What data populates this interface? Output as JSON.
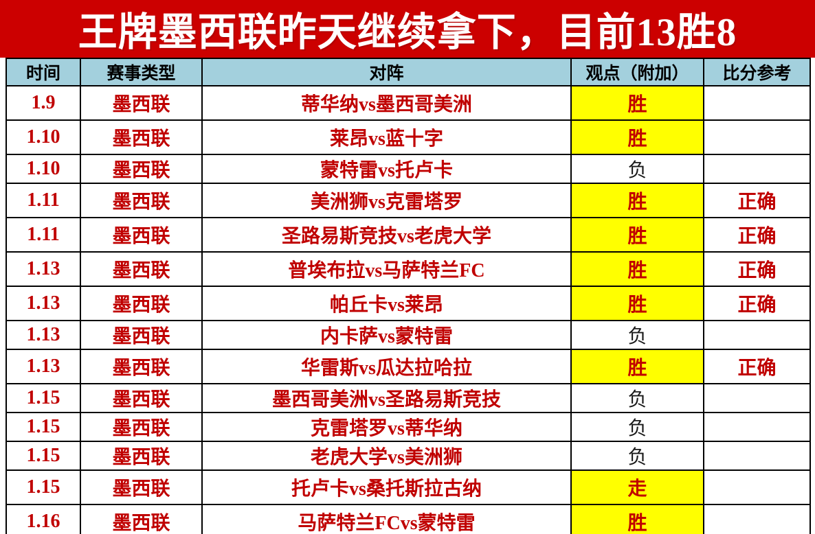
{
  "banner": {
    "title": "王牌墨西联昨天继续拿下，目前13胜8"
  },
  "colors": {
    "banner_red": "#cc0000",
    "header_blue": "#a3d0dd",
    "highlight_yellow": "#ffff00",
    "text_red": "#c00000",
    "lose_text_black": "#1a1a1a"
  },
  "table": {
    "headers": [
      "时间",
      "赛事类型",
      "对阵",
      "观点（附加）",
      "比分参考"
    ],
    "rows": [
      {
        "time": "1.9",
        "league": "墨西联",
        "matchup": "蒂华纳vs墨西哥美洲",
        "prediction": "胜",
        "highlighted": true,
        "result": ""
      },
      {
        "time": "1.10",
        "league": "墨西联",
        "matchup": "莱昂vs蓝十字",
        "prediction": "胜",
        "highlighted": true,
        "result": ""
      },
      {
        "time": "1.10",
        "league": "墨西联",
        "matchup": "蒙特雷vs托卢卡",
        "prediction": "负",
        "highlighted": false,
        "result": ""
      },
      {
        "time": "1.11",
        "league": "墨西联",
        "matchup": "美洲狮vs克雷塔罗",
        "prediction": "胜",
        "highlighted": true,
        "result": "正确"
      },
      {
        "time": "1.11",
        "league": "墨西联",
        "matchup": "圣路易斯竞技vs老虎大学",
        "prediction": "胜",
        "highlighted": true,
        "result": "正确"
      },
      {
        "time": "1.13",
        "league": "墨西联",
        "matchup": "普埃布拉vs马萨特兰FC",
        "prediction": "胜",
        "highlighted": true,
        "result": "正确"
      },
      {
        "time": "1.13",
        "league": "墨西联",
        "matchup": "帕丘卡vs莱昂",
        "prediction": "胜",
        "highlighted": true,
        "result": "正确"
      },
      {
        "time": "1.13",
        "league": "墨西联",
        "matchup": "内卡萨vs蒙特雷",
        "prediction": "负",
        "highlighted": false,
        "result": ""
      },
      {
        "time": "1.13",
        "league": "墨西联",
        "matchup": "华雷斯vs瓜达拉哈拉",
        "prediction": "胜",
        "highlighted": true,
        "result": "正确"
      },
      {
        "time": "1.15",
        "league": "墨西联",
        "matchup": "墨西哥美洲vs圣路易斯竞技",
        "prediction": "负",
        "highlighted": false,
        "result": ""
      },
      {
        "time": "1.15",
        "league": "墨西联",
        "matchup": "克雷塔罗vs蒂华纳",
        "prediction": "负",
        "highlighted": false,
        "result": ""
      },
      {
        "time": "1.15",
        "league": "墨西联",
        "matchup": "老虎大学vs美洲狮",
        "prediction": "负",
        "highlighted": false,
        "result": ""
      },
      {
        "time": "1.15",
        "league": "墨西联",
        "matchup": "托卢卡vs桑托斯拉古纳",
        "prediction": "走",
        "highlighted": true,
        "result": ""
      },
      {
        "time": "1.16",
        "league": "墨西联",
        "matchup": "马萨特兰FCvs蒙特雷",
        "prediction": "胜",
        "highlighted": true,
        "result": ""
      }
    ]
  }
}
